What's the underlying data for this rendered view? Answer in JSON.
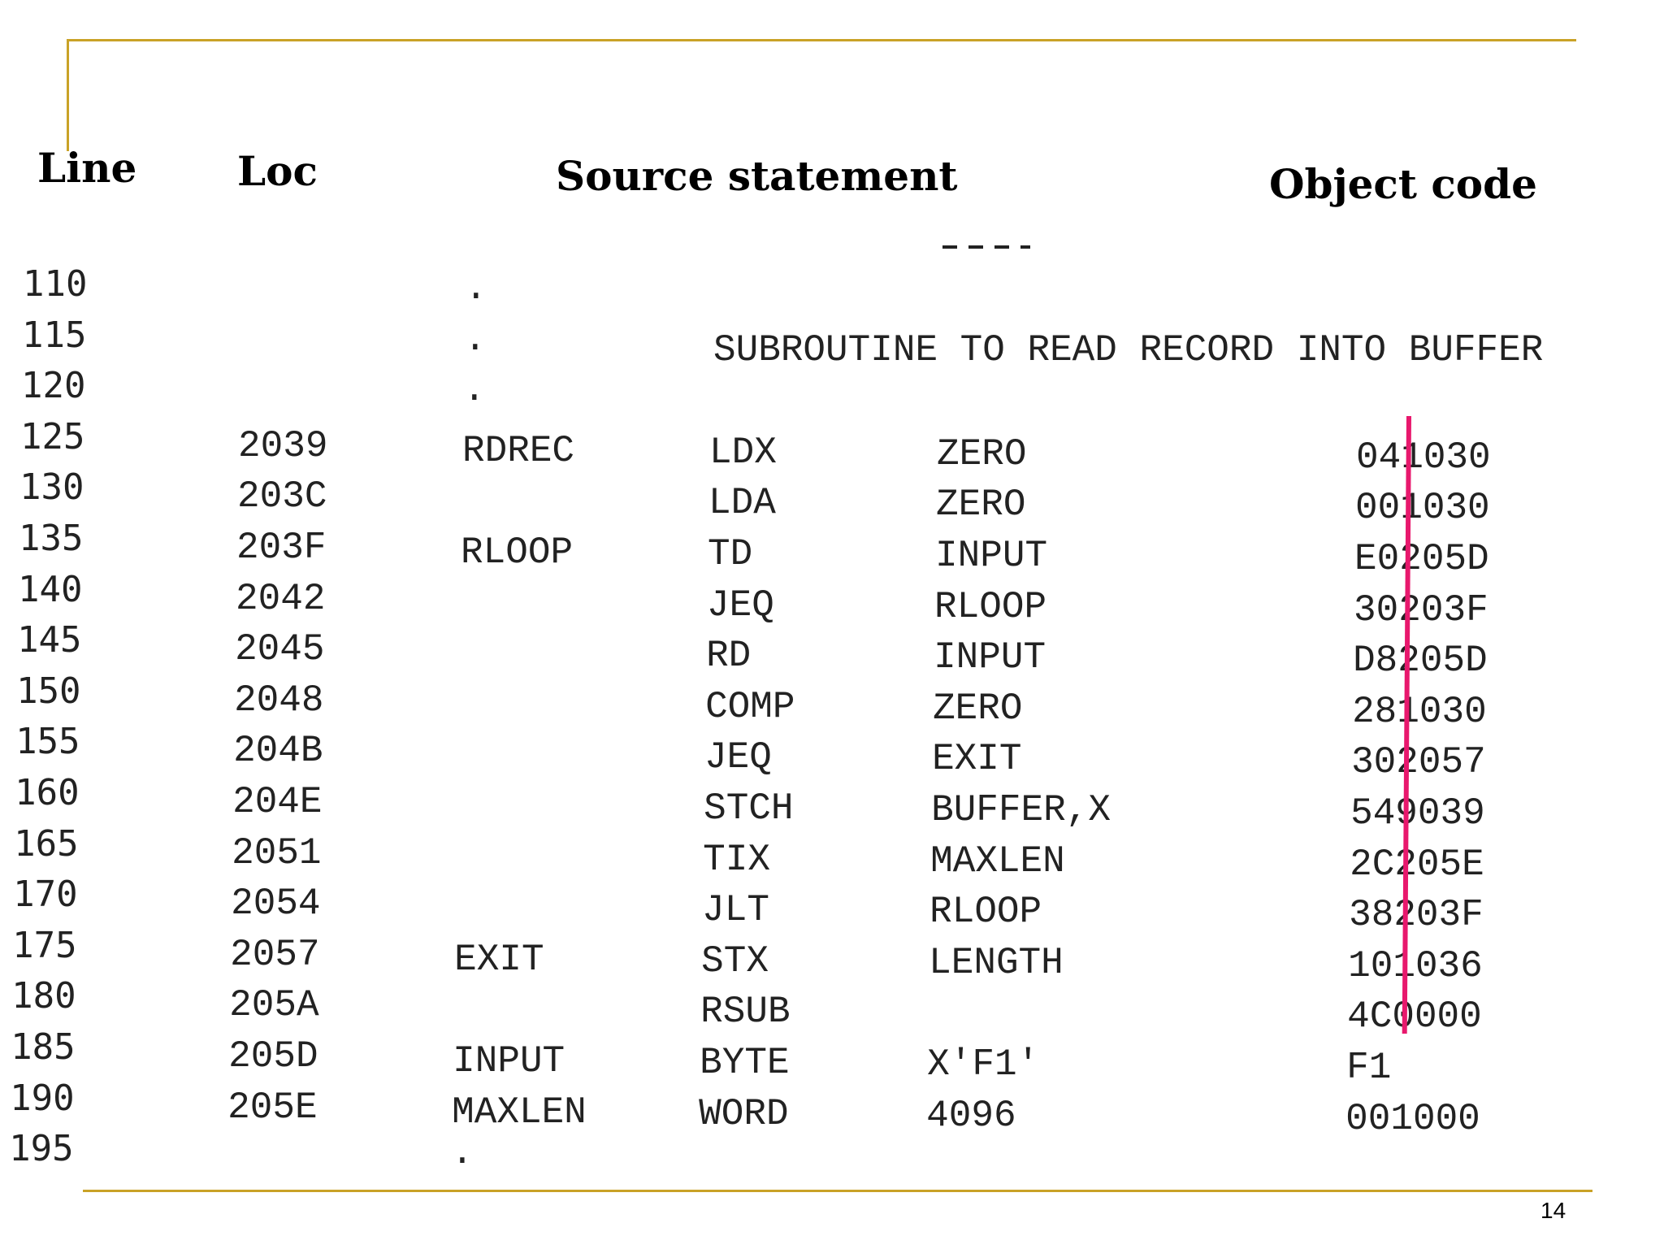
{
  "headers": {
    "line": "Line",
    "loc": "Loc",
    "source": "Source statement",
    "object": "Object code"
  },
  "comment": "SUBROUTINE TO READ RECORD INTO BUFFER",
  "rows": [
    {
      "line": "110",
      "loc": "",
      "label": ".",
      "op": "",
      "operand": "",
      "obj": ""
    },
    {
      "line": "115",
      "loc": "",
      "label": ".",
      "op": "",
      "operand": "",
      "obj": ""
    },
    {
      "line": "120",
      "loc": "",
      "label": ".",
      "op": "",
      "operand": "",
      "obj": ""
    },
    {
      "line": "125",
      "loc": "2039",
      "label": "RDREC",
      "op": "LDX",
      "operand": "ZERO",
      "obj": "041030"
    },
    {
      "line": "130",
      "loc": "203C",
      "label": "",
      "op": "LDA",
      "operand": "ZERO",
      "obj": "001030"
    },
    {
      "line": "135",
      "loc": "203F",
      "label": "RLOOP",
      "op": "TD",
      "operand": "INPUT",
      "obj": "E0205D"
    },
    {
      "line": "140",
      "loc": "2042",
      "label": "",
      "op": "JEQ",
      "operand": "RLOOP",
      "obj": "30203F"
    },
    {
      "line": "145",
      "loc": "2045",
      "label": "",
      "op": "RD",
      "operand": "INPUT",
      "obj": "D8205D"
    },
    {
      "line": "150",
      "loc": "2048",
      "label": "",
      "op": "COMP",
      "operand": "ZERO",
      "obj": "281030"
    },
    {
      "line": "155",
      "loc": "204B",
      "label": "",
      "op": "JEQ",
      "operand": "EXIT",
      "obj": "302057"
    },
    {
      "line": "160",
      "loc": "204E",
      "label": "",
      "op": "STCH",
      "operand": "BUFFER,X",
      "obj": "549039"
    },
    {
      "line": "165",
      "loc": "2051",
      "label": "",
      "op": "TIX",
      "operand": "MAXLEN",
      "obj": "2C205E"
    },
    {
      "line": "170",
      "loc": "2054",
      "label": "",
      "op": "JLT",
      "operand": "RLOOP",
      "obj": "38203F"
    },
    {
      "line": "175",
      "loc": "2057",
      "label": "EXIT",
      "op": "STX",
      "operand": "LENGTH",
      "obj": "101036"
    },
    {
      "line": "180",
      "loc": "205A",
      "label": "",
      "op": "RSUB",
      "operand": "",
      "obj": "4C0000"
    },
    {
      "line": "185",
      "loc": "205D",
      "label": "INPUT",
      "op": "BYTE",
      "operand": "X'F1'",
      "obj": "F1"
    },
    {
      "line": "190",
      "loc": "205E",
      "label": "MAXLEN",
      "op": "WORD",
      "operand": "4096",
      "obj": "001000"
    },
    {
      "line": "195",
      "loc": "",
      "label": ".",
      "op": "",
      "operand": "",
      "obj": ""
    }
  ],
  "page_number": "14",
  "colors": {
    "rule": "#C9A227",
    "marker": "#E8186D",
    "text": "#222222"
  }
}
